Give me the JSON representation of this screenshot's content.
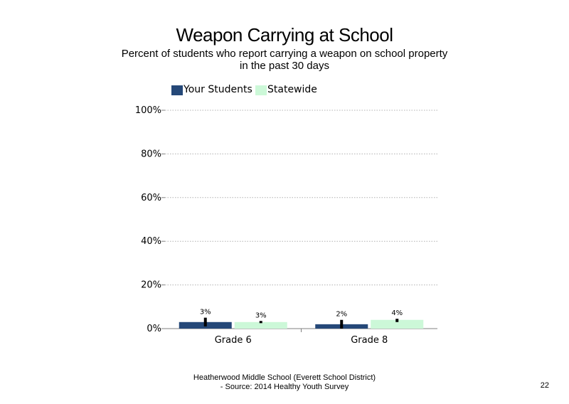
{
  "slide": {
    "footer_line1": "Heatherwood Middle School (Everett School District)",
    "footer_line2": "- Source: 2014 Healthy  Youth Survey",
    "page_number": "22"
  },
  "chart_data": {
    "type": "bar",
    "title": "Weapon Carrying at School",
    "subtitle": "Percent of students  who report carrying a weapon  on school property in the past 30 days",
    "categories": [
      "Grade 6",
      "Grade 8"
    ],
    "series": [
      {
        "name": "Your Students",
        "values": [
          3,
          2
        ],
        "labels": [
          "3%",
          "2%"
        ],
        "error": [
          [
            1,
            5
          ],
          [
            0,
            4
          ]
        ],
        "color": "#254878"
      },
      {
        "name": "Statewide",
        "values": [
          3,
          4
        ],
        "labels": [
          "3%",
          "4%"
        ],
        "error": [
          [
            2.5,
            3.5
          ],
          [
            3,
            4.5
          ]
        ],
        "color": "#ccf8d8"
      }
    ],
    "yticks": [
      "0%",
      "20%",
      "40%",
      "60%",
      "80%",
      "100%"
    ],
    "ylim": [
      0,
      100
    ],
    "grid": true,
    "legend": "top-left"
  }
}
